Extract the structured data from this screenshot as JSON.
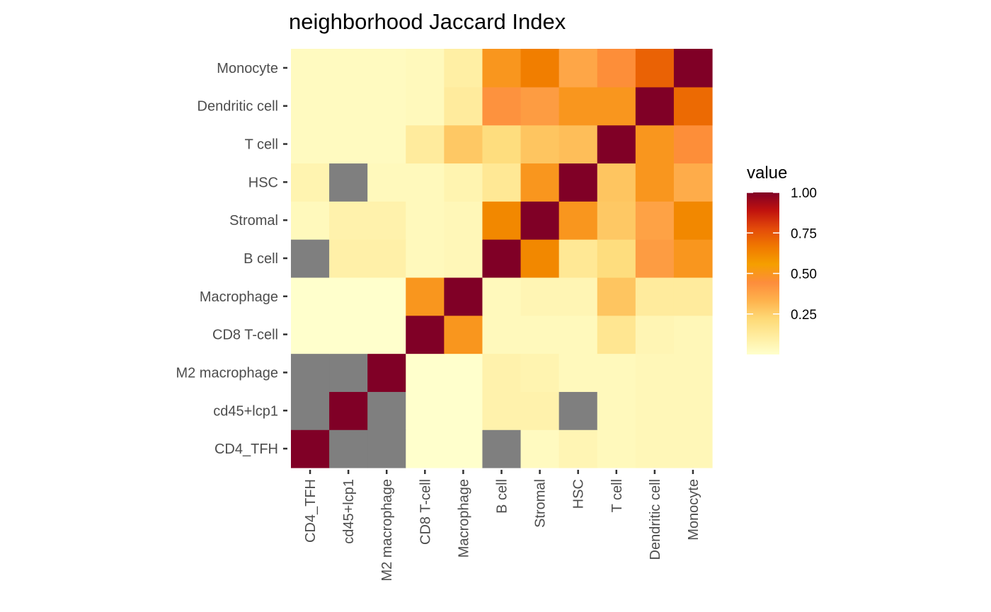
{
  "chart_data": {
    "type": "heatmap",
    "title": "neighborhood Jaccard Index",
    "xlabel": "",
    "ylabel": "",
    "x_categories": [
      "CD4_TFH",
      "cd45+lcp1",
      "M2 macrophage",
      "CD8 T-cell",
      "Macrophage",
      "B cell",
      "Stromal",
      "HSC",
      "T cell",
      "Dendritic cell",
      "Monocyte"
    ],
    "y_categories": [
      "CD4_TFH",
      "cd45+lcp1",
      "M2 macrophage",
      "CD8 T-cell",
      "Macrophage",
      "B cell",
      "Stromal",
      "HSC",
      "T cell",
      "Dendritic cell",
      "Monocyte"
    ],
    "values": [
      [
        1.0,
        null,
        null,
        0.0,
        0.0,
        null,
        0.03,
        0.06,
        0.04,
        0.05,
        0.05
      ],
      [
        null,
        1.0,
        null,
        0.0,
        0.0,
        0.08,
        0.08,
        null,
        0.04,
        0.05,
        0.05
      ],
      [
        null,
        null,
        1.0,
        0.0,
        0.0,
        0.08,
        0.07,
        0.04,
        0.04,
        0.05,
        0.05
      ],
      [
        0.0,
        0.0,
        0.0,
        1.0,
        0.5,
        0.04,
        0.04,
        0.04,
        0.15,
        0.06,
        0.05
      ],
      [
        0.0,
        0.0,
        0.0,
        0.5,
        1.0,
        0.04,
        0.06,
        0.06,
        0.28,
        0.12,
        0.12
      ],
      [
        null,
        0.09,
        0.09,
        0.04,
        0.05,
        1.0,
        0.62,
        0.14,
        0.2,
        0.4,
        0.5
      ],
      [
        0.04,
        0.08,
        0.08,
        0.04,
        0.05,
        0.62,
        1.0,
        0.5,
        0.27,
        0.38,
        0.62
      ],
      [
        0.07,
        null,
        0.04,
        0.04,
        0.07,
        0.14,
        0.5,
        1.0,
        0.28,
        0.5,
        0.35
      ],
      [
        0.03,
        0.03,
        0.03,
        0.12,
        0.27,
        0.2,
        0.28,
        0.3,
        1.0,
        0.5,
        0.45
      ],
      [
        0.03,
        0.03,
        0.03,
        0.04,
        0.12,
        0.43,
        0.4,
        0.5,
        0.5,
        1.0,
        0.7
      ],
      [
        0.03,
        0.03,
        0.03,
        0.04,
        0.1,
        0.5,
        0.65,
        0.37,
        0.45,
        0.72,
        1.0
      ]
    ],
    "missing_color": "#7f7f7f",
    "colorscale": [
      "#ffffcc",
      "#ffeda0",
      "#fed976",
      "#feb24c",
      "#fd8d3c",
      "#f59f00",
      "#f07800",
      "#e34a0a",
      "#c0120e",
      "#800026"
    ],
    "legend": {
      "title": "value",
      "ticks": [
        "1.00",
        "0.75",
        "0.50",
        "0.25"
      ],
      "tick_values": [
        1.0,
        0.75,
        0.5,
        0.25
      ],
      "range": [
        0.0,
        1.0
      ],
      "placement": "right"
    },
    "grid": false
  }
}
